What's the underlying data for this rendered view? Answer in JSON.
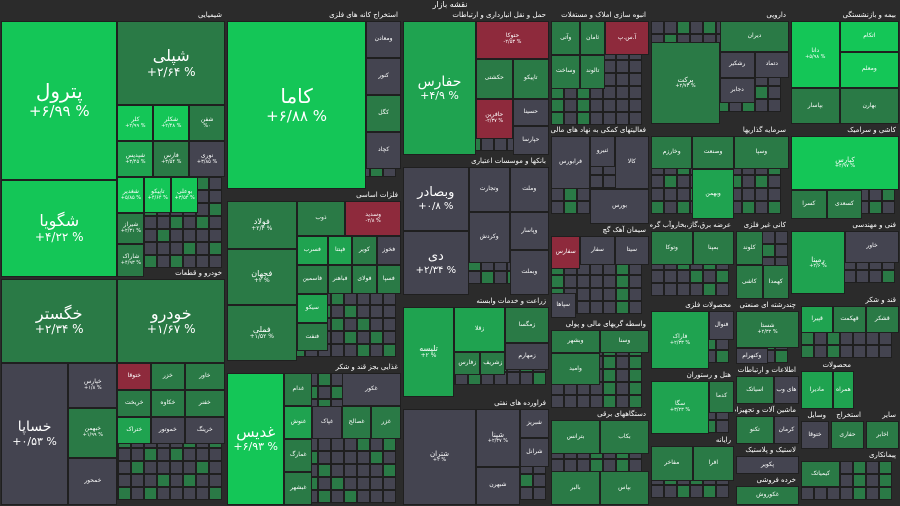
{
  "title": "نقشه بازار",
  "colors": {
    "bg": "#2b2b2b",
    "up3": "#14c657",
    "up2": "#1fa350",
    "up1": "#2a7a46",
    "neutral": "#444450",
    "down": "#8e2a3c"
  },
  "sectors": [
    {
      "label": "شیمیایی",
      "tiles": [
        {
          "name": "پترول",
          "pct": "+۶/۹۹ %"
        },
        {
          "name": "شپلی",
          "pct": "+۲/۶۴ %"
        },
        {
          "name": "شگویا",
          "pct": "+۴/۲۲ %"
        },
        {
          "name": "کلر",
          "pct": "+۲/۹۹ %"
        },
        {
          "name": "شکلر",
          "pct": "+۲/۴۸ %"
        },
        {
          "name": "شفن",
          "pct": "%۰"
        },
        {
          "name": "شپدیس",
          "pct": "+۳/۴۵ %"
        },
        {
          "name": "فارس",
          "pct": "+۳/۵۴ %"
        },
        {
          "name": "نوری",
          "pct": "+۳/۸۵ %"
        },
        {
          "name": "شغدیر",
          "pct": "+۵/۸۵ %"
        },
        {
          "name": "تاپیکو",
          "pct": "+۴/۶۴ %"
        },
        {
          "name": "بوعلی",
          "pct": "+۳/۵۴ %"
        },
        {
          "name": "شیراز",
          "pct": "+۲/۳۱ %"
        },
        {
          "name": "شاراک",
          "pct": "+۴/۹۳ %"
        }
      ]
    },
    {
      "label": "خودرو و قطعات",
      "tiles": [
        {
          "name": "خگستر",
          "pct": "+۲/۳۴ %"
        },
        {
          "name": "خودرو",
          "pct": "+۱/۶۷ %"
        },
        {
          "name": "خساپا",
          "pct": "+۰/۵۳ %"
        },
        {
          "name": "خپارس",
          "pct": "+۱/۸ %"
        },
        {
          "name": "ختوقا",
          "pct": ""
        },
        {
          "name": "خزر",
          "pct": ""
        },
        {
          "name": "خاور",
          "pct": ""
        },
        {
          "name": "خبهمن",
          "pct": "+۱/۹۹ %"
        },
        {
          "name": "خمحور",
          "pct": ""
        },
        {
          "name": "خریخت",
          "pct": ""
        },
        {
          "name": "خکاوه",
          "pct": ""
        },
        {
          "name": "خفنر",
          "pct": ""
        },
        {
          "name": "ختراک",
          "pct": ""
        },
        {
          "name": "خموتور",
          "pct": ""
        },
        {
          "name": "خرینگ",
          "pct": ""
        }
      ]
    },
    {
      "label": "استخراج کانه های فلزی",
      "tiles": [
        {
          "name": "کاما",
          "pct": "+۶/۸۸ %"
        },
        {
          "name": "ومعادن",
          "pct": ""
        },
        {
          "name": "کنور",
          "pct": ""
        },
        {
          "name": "کگل",
          "pct": ""
        },
        {
          "name": "کچاد",
          "pct": ""
        }
      ]
    },
    {
      "label": "فلزات اساسی",
      "tiles": [
        {
          "name": "فولاد",
          "pct": "+۲/۴ %"
        },
        {
          "name": "فجهان",
          "pct": "+۲ %"
        },
        {
          "name": "فملی",
          "pct": "+۱/۵۲ %"
        },
        {
          "name": "ذوب",
          "pct": ""
        },
        {
          "name": "وسدید",
          "pct": "-۲/۸ %"
        },
        {
          "name": "فسرب",
          "pct": ""
        },
        {
          "name": "فپنتا",
          "pct": ""
        },
        {
          "name": "کویر",
          "pct": ""
        },
        {
          "name": "فخوز",
          "pct": ""
        },
        {
          "name": "فاسمین",
          "pct": ""
        },
        {
          "name": "فباهنر",
          "pct": ""
        },
        {
          "name": "فولای",
          "pct": ""
        },
        {
          "name": "فسپا",
          "pct": ""
        },
        {
          "name": "سیکو",
          "pct": ""
        },
        {
          "name": "فنفت",
          "pct": ""
        }
      ]
    },
    {
      "label": "غذایی بجز قند و شکر",
      "tiles": [
        {
          "name": "غدیس",
          "pct": "+۶/۹۳ %"
        },
        {
          "name": "غدام",
          "pct": ""
        },
        {
          "name": "غکور",
          "pct": ""
        },
        {
          "name": "غنوش",
          "pct": ""
        },
        {
          "name": "غمارگ",
          "pct": ""
        },
        {
          "name": "غبشهر",
          "pct": ""
        },
        {
          "name": "غپاک",
          "pct": ""
        },
        {
          "name": "غصالح",
          "pct": ""
        },
        {
          "name": "غزر",
          "pct": ""
        }
      ]
    },
    {
      "label": "حمل و نقل انبارداری و ارتباطات",
      "tiles": [
        {
          "name": "حفارس",
          "pct": "+۴/۹ %"
        },
        {
          "name": "حتوکا",
          "pct": "-۲/۵۳ %"
        },
        {
          "name": "حکشتی",
          "pct": ""
        },
        {
          "name": "تاپیکو",
          "pct": ""
        },
        {
          "name": "حافرین",
          "pct": "-۲/۳۷ %"
        },
        {
          "name": "حسینا",
          "pct": ""
        },
        {
          "name": "حپارسا",
          "pct": ""
        }
      ]
    },
    {
      "label": "بانکها و موسسات اعتباری",
      "tiles": [
        {
          "name": "وبصادر",
          "pct": "+۰/۸ %"
        },
        {
          "name": "وتجارت",
          "pct": ""
        },
        {
          "name": "وملت",
          "pct": ""
        },
        {
          "name": "دی",
          "pct": "+۲/۳۴ %"
        },
        {
          "name": "وکردش",
          "pct": ""
        },
        {
          "name": "وپاسار",
          "pct": ""
        },
        {
          "name": "وبملت",
          "pct": ""
        }
      ]
    },
    {
      "label": "زراعت و خدمات وابسته",
      "tiles": [
        {
          "name": "تلیسه",
          "pct": "+۲ %"
        },
        {
          "name": "زقلا",
          "pct": ""
        },
        {
          "name": "زمگسا",
          "pct": ""
        },
        {
          "name": "زفارس",
          "pct": ""
        },
        {
          "name": "زشریف",
          "pct": ""
        },
        {
          "name": "زمهارم",
          "pct": ""
        }
      ]
    },
    {
      "label": "فراورده های نفتی",
      "tiles": [
        {
          "name": "شتران",
          "pct": "+۲ %"
        },
        {
          "name": "شپنا",
          "pct": "+۲/۳۷ %"
        },
        {
          "name": "شبریز",
          "pct": ""
        },
        {
          "name": "شرانل",
          "pct": ""
        },
        {
          "name": "شبهرن",
          "pct": ""
        }
      ]
    },
    {
      "label": "انبوه سازی املاک و مستغلات",
      "tiles": [
        {
          "name": "وآتی",
          "pct": ""
        },
        {
          "name": "ثامان",
          "pct": ""
        },
        {
          "name": "وساخت",
          "pct": ""
        },
        {
          "name": "آ.س.پ",
          "pct": ""
        },
        {
          "name": "تالوند",
          "pct": ""
        }
      ]
    },
    {
      "label": "فعالیتهای کمکی به نهاد های مالی واسط",
      "tiles": [
        {
          "name": "فرابورس",
          "pct": ""
        },
        {
          "name": "ثنیرو",
          "pct": ""
        },
        {
          "name": "کالا",
          "pct": ""
        },
        {
          "name": "بورس",
          "pct": ""
        }
      ]
    },
    {
      "label": "سیمان آهک گچ",
      "tiles": [
        {
          "name": "سفارس",
          "pct": ""
        },
        {
          "name": "سفار",
          "pct": ""
        },
        {
          "name": "سپاها",
          "pct": ""
        },
        {
          "name": "سیتا",
          "pct": ""
        }
      ]
    },
    {
      "label": "واسطه گریهای مالی و پولی",
      "tiles": [
        {
          "name": "وبشهر",
          "pct": ""
        },
        {
          "name": "وسنا",
          "pct": ""
        },
        {
          "name": "وامید",
          "pct": ""
        }
      ]
    },
    {
      "label": "دستگاههای برقی",
      "tiles": [
        {
          "name": "بترانس",
          "pct": ""
        },
        {
          "name": "بکاب",
          "pct": ""
        },
        {
          "name": "بالبر",
          "pct": ""
        },
        {
          "name": "بپاس",
          "pct": ""
        }
      ]
    },
    {
      "label": "دارویی",
      "tiles": [
        {
          "name": "دیران",
          "pct": ""
        },
        {
          "name": "برکت",
          "pct": "+۲/۷۳ %"
        },
        {
          "name": "رشکیر",
          "pct": ""
        },
        {
          "name": "دتماد",
          "pct": ""
        },
        {
          "name": "دجابر",
          "pct": ""
        }
      ]
    },
    {
      "label": "سرمایه گذاریها",
      "tiles": [
        {
          "name": "وسپا",
          "pct": ""
        },
        {
          "name": "وبهمن",
          "pct": ""
        },
        {
          "name": "وخارزم",
          "pct": ""
        },
        {
          "name": "وصنعت",
          "pct": ""
        }
      ]
    },
    {
      "label": "عرضه برق،گاز،بخاروآب گرم",
      "tiles": [
        {
          "name": "وتوکا",
          "pct": ""
        },
        {
          "name": "بمپنا",
          "pct": ""
        }
      ]
    },
    {
      "label": "کانی غیر فلزی",
      "tiles": [
        {
          "name": "کلوند",
          "pct": ""
        },
        {
          "name": "کهمدا",
          "pct": ""
        },
        {
          "name": "کاشی",
          "pct": ""
        }
      ]
    },
    {
      "label": "بیمه و بازنشستگی",
      "tiles": [
        {
          "name": "دانا",
          "pct": "+۵/۹۸ %"
        },
        {
          "name": "اتکام",
          "pct": ""
        },
        {
          "name": "ومعلم",
          "pct": ""
        },
        {
          "name": "بپاسار",
          "pct": ""
        },
        {
          "name": "بهارن",
          "pct": ""
        }
      ]
    },
    {
      "label": "کاشی و سرامیک",
      "tiles": [
        {
          "name": "کپارس",
          "pct": "+۴/۹۷ %"
        },
        {
          "name": "کسرا",
          "pct": ""
        },
        {
          "name": "کسعدی",
          "pct": ""
        }
      ]
    },
    {
      "label": "فنی و مهندسی",
      "tiles": [
        {
          "name": "رمپنا",
          "pct": "+۲/۶ %"
        },
        {
          "name": "خاور",
          "pct": ""
        }
      ]
    },
    {
      "label": "محصولات فلزی",
      "tiles": [
        {
          "name": "فاراک",
          "pct": "+۲/۳۳ %"
        },
        {
          "name": "فنوال",
          "pct": ""
        }
      ]
    },
    {
      "label": "چندرشته ای صنعتی",
      "tiles": [
        {
          "name": "شستا",
          "pct": "+۲/۳۲ %"
        },
        {
          "name": "وکنهرام",
          "pct": ""
        }
      ]
    },
    {
      "label": "قند و شکر",
      "tiles": [
        {
          "name": "قپیرا",
          "pct": ""
        },
        {
          "name": "قهکمت",
          "pct": ""
        },
        {
          "name": "قشکر",
          "pct": ""
        }
      ]
    },
    {
      "label": "هتل و رستوران",
      "tiles": [
        {
          "name": "سگا",
          "pct": "+۳/۲۳ %"
        },
        {
          "name": "کدما",
          "pct": ""
        }
      ]
    },
    {
      "label": "اطلاعات و ارتباطات",
      "tiles": [
        {
          "name": "اسیاتک",
          "pct": ""
        },
        {
          "name": "های وب",
          "pct": ""
        }
      ]
    },
    {
      "label": "ماشین آلات و تجهیزات",
      "tiles": [
        {
          "name": "تکنو",
          "pct": ""
        },
        {
          "name": "کرمان",
          "pct": ""
        }
      ]
    },
    {
      "label": "محصولات",
      "tiles": [
        {
          "name": "مادیرا",
          "pct": ""
        },
        {
          "name": "همراه",
          "pct": ""
        }
      ]
    },
    {
      "label": "وسایل",
      "tiles": [
        {
          "name": "ختوقا",
          "pct": ""
        }
      ]
    },
    {
      "label": "استخراج",
      "tiles": [
        {
          "name": "حفاری",
          "pct": ""
        }
      ]
    },
    {
      "label": "سایر",
      "tiles": [
        {
          "name": "اخابر",
          "pct": ""
        }
      ]
    },
    {
      "label": "رایانه",
      "tiles": [
        {
          "name": "مفاخر",
          "pct": ""
        },
        {
          "name": "افرا",
          "pct": ""
        }
      ]
    },
    {
      "label": "لاستیک و پلاستیک",
      "tiles": [
        {
          "name": "پکویر",
          "pct": ""
        }
      ]
    },
    {
      "label": "پیمانکاری",
      "tiles": [
        {
          "name": "کیمیاتک",
          "pct": ""
        }
      ]
    },
    {
      "label": "خرده فروشی",
      "tiles": [
        {
          "name": "غکوروش",
          "pct": ""
        }
      ]
    }
  ]
}
